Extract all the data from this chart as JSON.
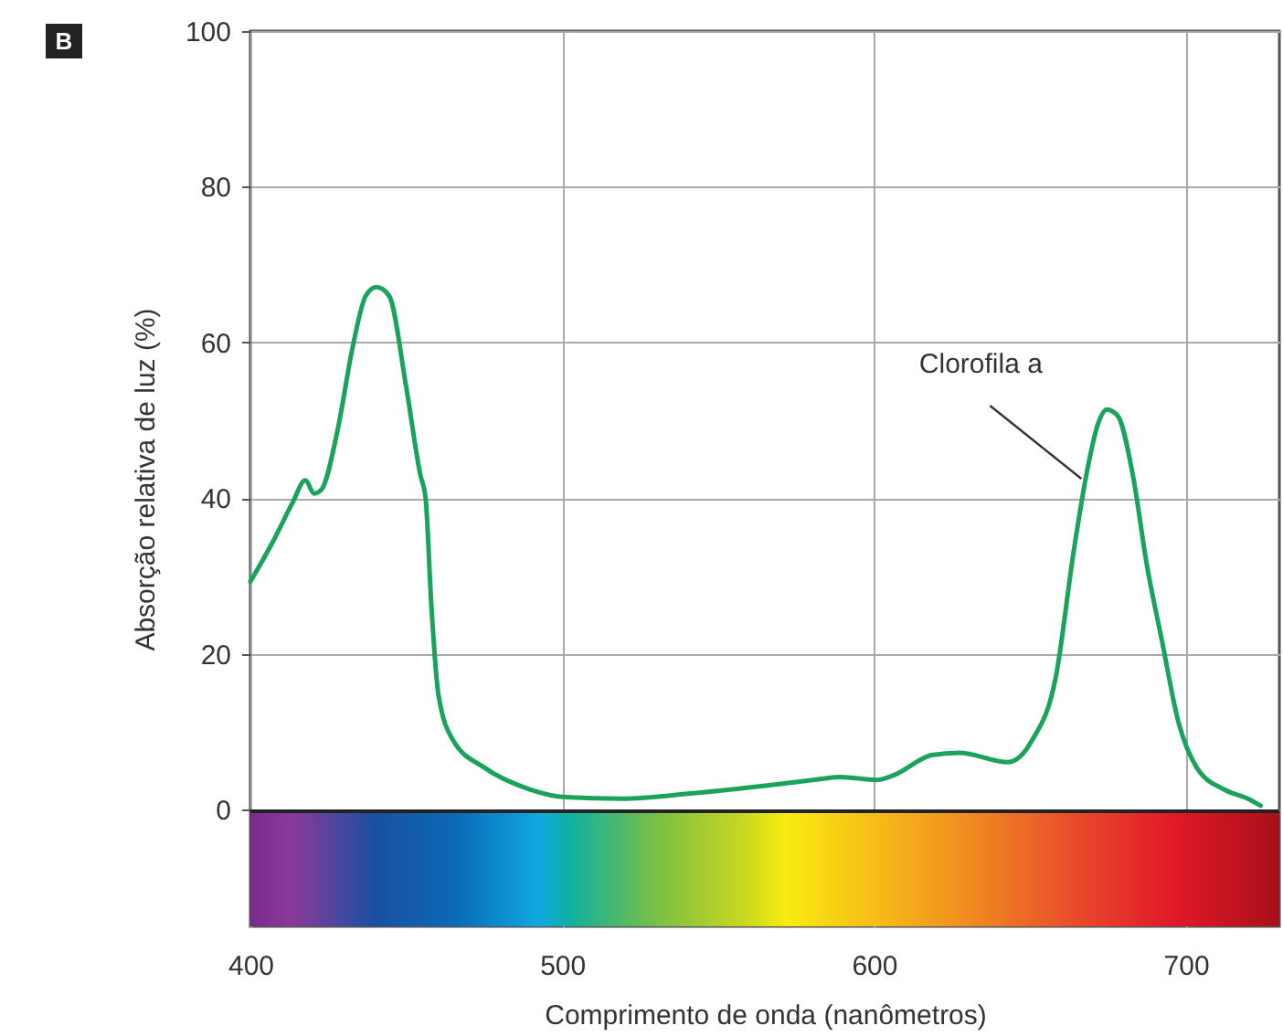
{
  "chart_data": {
    "type": "line",
    "xlabel": "Comprimento de onda (nanômetros)",
    "ylabel": "Absorção relativa de luz (%)",
    "annotations": [
      "B",
      {
        "text": "Clorofila a",
        "x": 666.5,
        "y": 42.5
      }
    ],
    "xlim": [
      400,
      730
    ],
    "xticks": [
      400,
      500,
      600,
      700
    ],
    "ylim": [
      -15,
      100
    ],
    "yticks": [
      0,
      20,
      40,
      60,
      80,
      100
    ],
    "grid": true,
    "marker": "none",
    "line_style": "solid",
    "x": [
      400,
      407.6,
      413.5,
      417.6,
      420.5,
      422.8,
      428,
      432.8,
      437,
      440.4,
      444.5,
      449.8,
      454.5,
      456.2,
      458,
      460.3,
      465,
      475,
      489.6,
      501,
      519,
      542,
      565.8,
      580.4,
      589,
      601,
      606.8,
      618.5,
      627.3,
      643,
      650.7,
      658.3,
      664.2,
      668.3,
      671.8,
      674.7,
      678.3,
      683,
      687.6,
      692.3,
      697.6,
      703.5,
      712.2,
      719.9,
      724
    ],
    "series": [
      {
        "color": "#1aa35a",
        "values": [
          29.3,
          34.7,
          39.4,
          42.3,
          40.6,
          41.1,
          48.8,
          59.4,
          66,
          67.1,
          66,
          54.7,
          43,
          40,
          26.5,
          14.8,
          8.9,
          5.4,
          2.6,
          1.6,
          1.4,
          2.1,
          3.1,
          3.8,
          4.2,
          3.8,
          4.5,
          7,
          7.3,
          6.1,
          8.9,
          17,
          33.6,
          43.4,
          49.5,
          51.4,
          50.5,
          43,
          31.2,
          21.8,
          11.3,
          5.4,
          2.6,
          1.4,
          0.5
        ]
      }
    ]
  }
}
